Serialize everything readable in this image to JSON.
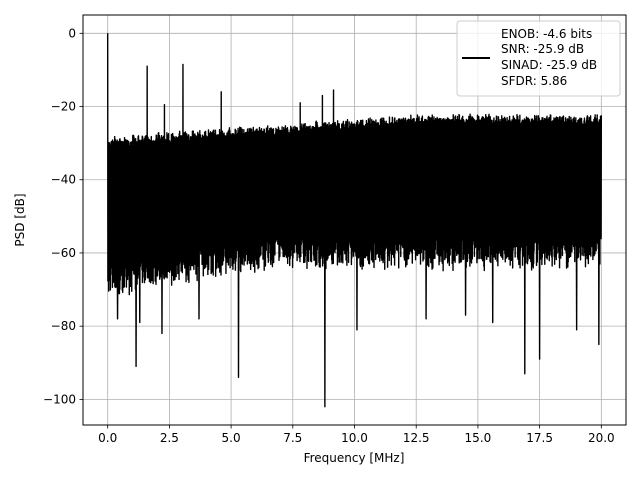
{
  "chart_data": {
    "type": "line",
    "xlabel": "Frequency [MHz]",
    "ylabel": "PSD [dB]",
    "xlim": [
      -1.0,
      21.0
    ],
    "ylim": [
      -107,
      5
    ],
    "x_ticks": [
      0.0,
      2.5,
      5.0,
      7.5,
      10.0,
      12.5,
      15.0,
      17.5,
      20.0
    ],
    "x_tick_labels": [
      "0.0",
      "2.5",
      "5.0",
      "7.5",
      "10.0",
      "12.5",
      "15.0",
      "17.5",
      "20.0"
    ],
    "y_ticks": [
      0,
      -20,
      -40,
      -60,
      -80,
      -100
    ],
    "y_tick_labels": [
      "0",
      "−20",
      "−40",
      "−60",
      "−80",
      "−100"
    ],
    "grid": true,
    "legend_position": "top-right",
    "series": [
      {
        "name": "ENOB: -4.6 bits\nSNR: -25.9 dB\nSINAD: -25.9 dB\nSFDR: 5.86",
        "color": "#000000",
        "x_start": 0.0,
        "x_end": 20.0,
        "noise_band": {
          "upper_dB": [
            -28,
            -22
          ],
          "lower_dB": [
            -65,
            -57
          ]
        },
        "peaks": [
          {
            "x": 0.0,
            "y": 0
          },
          {
            "x": 1.6,
            "y": -9
          },
          {
            "x": 3.05,
            "y": -8.5
          },
          {
            "x": 4.6,
            "y": -16
          },
          {
            "x": 9.15,
            "y": -15.5
          },
          {
            "x": 8.7,
            "y": -17
          },
          {
            "x": 2.3,
            "y": -19.5
          },
          {
            "x": 7.8,
            "y": -19
          }
        ],
        "dips": [
          {
            "x": 8.8,
            "y": -102
          },
          {
            "x": 5.3,
            "y": -94
          },
          {
            "x": 1.15,
            "y": -91
          },
          {
            "x": 16.9,
            "y": -93
          },
          {
            "x": 17.5,
            "y": -89
          },
          {
            "x": 19.9,
            "y": -85
          },
          {
            "x": 2.2,
            "y": -82
          },
          {
            "x": 10.1,
            "y": -81
          },
          {
            "x": 1.3,
            "y": -79
          },
          {
            "x": 0.4,
            "y": -78
          },
          {
            "x": 3.7,
            "y": -78
          },
          {
            "x": 14.5,
            "y": -77
          },
          {
            "x": 19.0,
            "y": -81
          },
          {
            "x": 12.9,
            "y": -78
          },
          {
            "x": 15.6,
            "y": -79
          }
        ]
      }
    ],
    "legend_lines": [
      "ENOB: -4.6 bits",
      "SNR: -25.9 dB",
      "SINAD: -25.9 dB",
      "SFDR: 5.86"
    ]
  }
}
